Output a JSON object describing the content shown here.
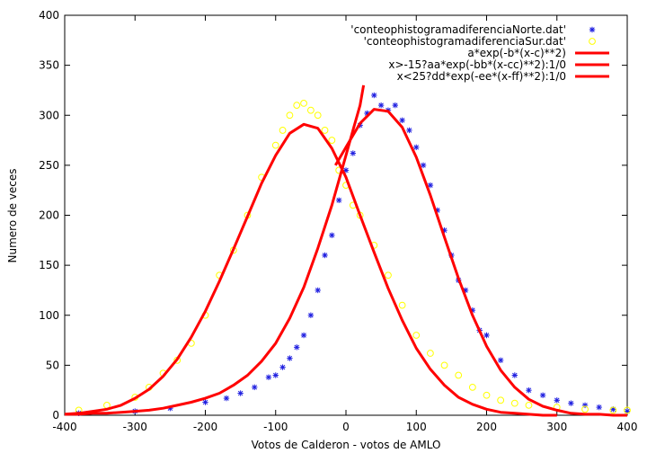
{
  "chart_data": {
    "type": "scatter",
    "title": "",
    "xlabel": "Votos de Calderon - votos de AMLO",
    "ylabel": "Numero de veces",
    "xlim": [
      -400,
      400
    ],
    "ylim": [
      0,
      400
    ],
    "xticks": [
      -400,
      -300,
      -200,
      -100,
      0,
      100,
      200,
      300,
      400
    ],
    "yticks": [
      0,
      50,
      100,
      150,
      200,
      250,
      300,
      350,
      400
    ],
    "xtick_labels": [
      "-400",
      "-300",
      "-200",
      "-100",
      "0",
      "100",
      "200",
      "300",
      "400"
    ],
    "ytick_labels": [
      "0",
      "50",
      "100",
      "150",
      "200",
      "250",
      "300",
      "350",
      "400"
    ],
    "grid": false,
    "legend_position": "top-right",
    "series": [
      {
        "name": "'conteophistogramadiferenciaNorte.dat'",
        "kind": "points",
        "marker": "asterisk",
        "color": "#1f1fe0",
        "x": [
          -380,
          -300,
          -250,
          -200,
          -170,
          -150,
          -130,
          -110,
          -100,
          -90,
          -80,
          -70,
          -60,
          -50,
          -40,
          -30,
          -20,
          -10,
          0,
          10,
          20,
          30,
          40,
          50,
          60,
          70,
          80,
          90,
          100,
          110,
          120,
          130,
          140,
          150,
          160,
          170,
          180,
          190,
          200,
          220,
          240,
          260,
          280,
          300,
          320,
          340,
          360,
          380,
          400
        ],
        "y": [
          2,
          4,
          7,
          13,
          17,
          22,
          28,
          38,
          40,
          48,
          57,
          68,
          80,
          100,
          125,
          160,
          180,
          215,
          245,
          262,
          290,
          302,
          320,
          310,
          305,
          310,
          295,
          285,
          268,
          250,
          230,
          205,
          185,
          160,
          135,
          125,
          105,
          85,
          80,
          55,
          40,
          25,
          20,
          15,
          12,
          10,
          8,
          6,
          4
        ]
      },
      {
        "name": "'conteophistogramadiferenciaSur.dat'",
        "kind": "points",
        "marker": "circle",
        "color": "#ffff00",
        "x": [
          -380,
          -340,
          -300,
          -280,
          -260,
          -240,
          -220,
          -200,
          -180,
          -160,
          -140,
          -120,
          -100,
          -90,
          -80,
          -70,
          -60,
          -50,
          -40,
          -30,
          -20,
          -10,
          0,
          10,
          20,
          40,
          60,
          80,
          100,
          120,
          140,
          160,
          180,
          200,
          220,
          240,
          260,
          300,
          340,
          380,
          400
        ],
        "y": [
          5,
          10,
          18,
          28,
          42,
          55,
          72,
          100,
          140,
          165,
          200,
          238,
          270,
          285,
          300,
          310,
          312,
          305,
          300,
          285,
          275,
          245,
          230,
          210,
          200,
          170,
          140,
          110,
          80,
          62,
          50,
          40,
          28,
          20,
          15,
          12,
          10,
          8,
          6,
          5,
          5
        ]
      },
      {
        "name": "a*exp(-b*(x-c)**2)",
        "kind": "line",
        "color": "#ff0000",
        "x": [
          -400,
          -380,
          -360,
          -340,
          -320,
          -300,
          -280,
          -260,
          -240,
          -220,
          -200,
          -180,
          -160,
          -140,
          -120,
          -100,
          -80,
          -60,
          -40,
          -20,
          0,
          20,
          40,
          60,
          80,
          100,
          120,
          140,
          160,
          180,
          200,
          220,
          240,
          260,
          280,
          300
        ],
        "y": [
          1,
          2,
          4,
          6,
          10,
          17,
          26,
          39,
          56,
          78,
          104,
          134,
          166,
          199,
          232,
          260,
          282,
          291,
          287,
          267,
          238,
          200,
          163,
          127,
          95,
          67,
          46,
          30,
          18,
          11,
          6,
          3,
          2,
          1,
          0,
          0
        ]
      },
      {
        "name": "x>-15?aa*exp(-bb*(x-cc)**2):1/0",
        "kind": "line",
        "color": "#ff0000",
        "x": [
          -15,
          0,
          20,
          40,
          60,
          80,
          100,
          120,
          140,
          160,
          180,
          200,
          220,
          240,
          260,
          280,
          300,
          320,
          340,
          360,
          380,
          400
        ],
        "y": [
          250,
          268,
          292,
          306,
          304,
          288,
          258,
          220,
          178,
          137,
          100,
          69,
          45,
          28,
          16,
          9,
          5,
          2,
          1,
          1,
          0,
          0
        ]
      },
      {
        "name": "x<25?dd*exp(-ee*(x-ff)**2):1/0",
        "kind": "line",
        "color": "#ff0000",
        "x": [
          -400,
          -380,
          -360,
          -340,
          -320,
          -300,
          -280,
          -260,
          -240,
          -220,
          -200,
          -180,
          -160,
          -140,
          -120,
          -100,
          -80,
          -60,
          -40,
          -20,
          0,
          10,
          20,
          25
        ],
        "y": [
          1,
          1,
          2,
          2,
          3,
          4,
          5,
          7,
          10,
          13,
          17,
          22,
          30,
          40,
          54,
          72,
          97,
          128,
          167,
          210,
          260,
          285,
          310,
          330
        ]
      }
    ]
  }
}
